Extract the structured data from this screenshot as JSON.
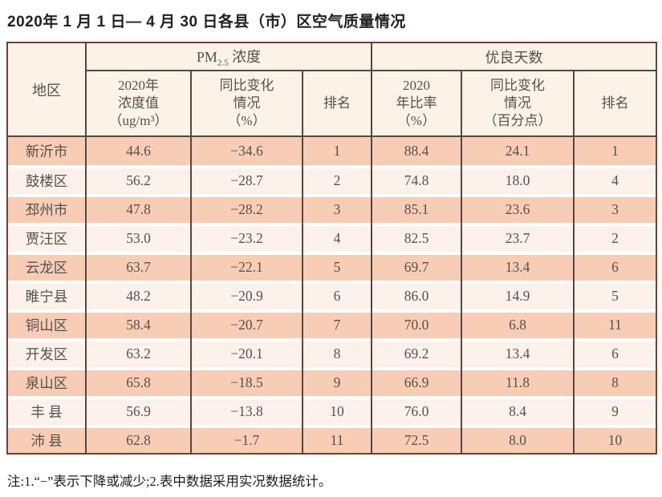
{
  "title": "2020年 1 月 1 日— 4 月 30 日各县（市）区空气质量情况",
  "table": {
    "region_header": "地区",
    "group_headers": {
      "pm25": {
        "prefix": "PM",
        "sub": "2.5",
        "suffix": " 浓度"
      },
      "good_days": "优良天数"
    },
    "sub_headers": {
      "pm_value": "2020年\n浓度值\n（ug/m³）",
      "pm_change": "同比变化\n情况\n（%）",
      "pm_rank": "排名",
      "gd_rate": "2020\n年比率\n（%）",
      "gd_change": "同比变化\n情况\n（百分点）",
      "gd_rank": "排名"
    },
    "rows": [
      {
        "region": "新沂市",
        "pm_value": "44.6",
        "pm_change": "−34.6",
        "pm_rank": "1",
        "gd_rate": "88.4",
        "gd_change": "24.1",
        "gd_rank": "1"
      },
      {
        "region": "鼓楼区",
        "pm_value": "56.2",
        "pm_change": "−28.7",
        "pm_rank": "2",
        "gd_rate": "74.8",
        "gd_change": "18.0",
        "gd_rank": "4"
      },
      {
        "region": "邳州市",
        "pm_value": "47.8",
        "pm_change": "−28.2",
        "pm_rank": "3",
        "gd_rate": "85.1",
        "gd_change": "23.6",
        "gd_rank": "3"
      },
      {
        "region": "贾汪区",
        "pm_value": "53.0",
        "pm_change": "−23.2",
        "pm_rank": "4",
        "gd_rate": "82.5",
        "gd_change": "23.7",
        "gd_rank": "2"
      },
      {
        "region": "云龙区",
        "pm_value": "63.7",
        "pm_change": "−22.1",
        "pm_rank": "5",
        "gd_rate": "69.7",
        "gd_change": "13.4",
        "gd_rank": "6"
      },
      {
        "region": "睢宁县",
        "pm_value": "48.2",
        "pm_change": "−20.9",
        "pm_rank": "6",
        "gd_rate": "86.0",
        "gd_change": "14.9",
        "gd_rank": "5"
      },
      {
        "region": "铜山区",
        "pm_value": "58.4",
        "pm_change": "−20.7",
        "pm_rank": "7",
        "gd_rate": "70.0",
        "gd_change": "6.8",
        "gd_rank": "11"
      },
      {
        "region": "开发区",
        "pm_value": "63.2",
        "pm_change": "−20.1",
        "pm_rank": "8",
        "gd_rate": "69.2",
        "gd_change": "13.4",
        "gd_rank": "6"
      },
      {
        "region": "泉山区",
        "pm_value": "65.8",
        "pm_change": "−18.5",
        "pm_rank": "9",
        "gd_rate": "66.9",
        "gd_change": "11.8",
        "gd_rank": "8"
      },
      {
        "region": "丰 县",
        "pm_value": "56.9",
        "pm_change": "−13.8",
        "pm_rank": "10",
        "gd_rate": "76.0",
        "gd_change": "8.4",
        "gd_rank": "9"
      },
      {
        "region": "沛 县",
        "pm_value": "62.8",
        "pm_change": "−1.7",
        "pm_rank": "11",
        "gd_rate": "72.5",
        "gd_change": "8.0",
        "gd_rank": "10"
      }
    ]
  },
  "footnote": "注:1.“−”表示下降或减少;2.表中数据采用实况数据统计。",
  "colors": {
    "row_salmon": "#f8cdb6",
    "row_light": "#fdf1ec",
    "header_bg": "#fcf2e7",
    "border_dark": "#564740",
    "border_outer": "#6f413a"
  }
}
